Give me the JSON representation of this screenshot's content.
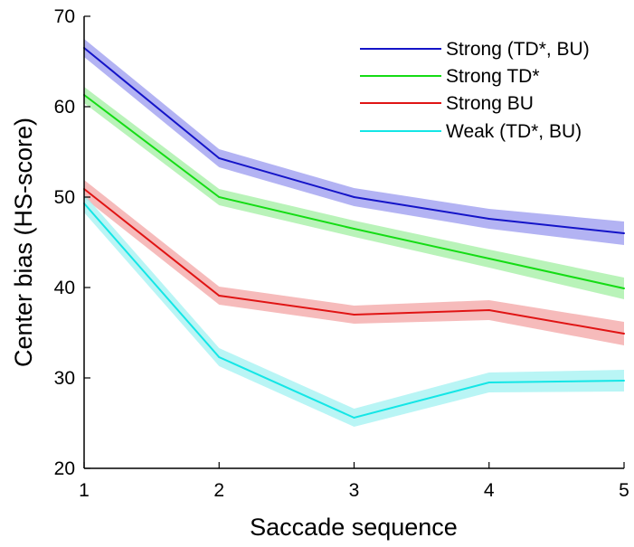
{
  "chart_data": {
    "type": "line",
    "xlabel": "Saccade sequence",
    "ylabel": "Center bias (HS-score)",
    "x": [
      1,
      2,
      3,
      4,
      5
    ],
    "xlim": [
      1,
      5
    ],
    "ylim": [
      20,
      70
    ],
    "xticks": [
      1,
      2,
      3,
      4,
      5
    ],
    "yticks": [
      20,
      30,
      40,
      50,
      60,
      70
    ],
    "grid": false,
    "legend_position": "top-right",
    "series": [
      {
        "name": "Strong (TD*, BU)",
        "color": "#1414c8",
        "band_color": "#a0a0f0",
        "values": [
          66.5,
          54.3,
          50.0,
          47.6,
          46.0
        ],
        "band": [
          1.0,
          1.0,
          1.0,
          1.1,
          1.3
        ]
      },
      {
        "name": "Strong TD*",
        "color": "#14dc14",
        "band_color": "#a8f0a8",
        "values": [
          61.3,
          50.0,
          46.5,
          43.2,
          39.9
        ],
        "band": [
          0.9,
          0.9,
          0.9,
          1.0,
          1.2
        ]
      },
      {
        "name": "Strong BU",
        "color": "#e01414",
        "band_color": "#f4aaaa",
        "values": [
          50.9,
          39.1,
          37.0,
          37.5,
          34.9
        ],
        "band": [
          1.0,
          1.0,
          1.0,
          1.1,
          1.3
        ]
      },
      {
        "name": "Weak (TD*, BU)",
        "color": "#14e6e6",
        "band_color": "#a8f2f2",
        "values": [
          49.3,
          32.3,
          25.6,
          29.5,
          29.7
        ],
        "band": [
          1.0,
          1.0,
          1.0,
          1.1,
          1.2
        ]
      }
    ]
  }
}
